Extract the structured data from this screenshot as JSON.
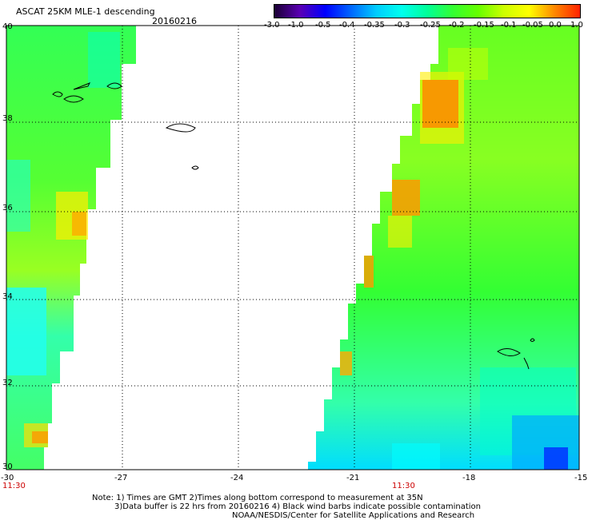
{
  "title": "ASCAT 25KM MLE-1 descending",
  "date": "20160216",
  "colorbar": {
    "labels": [
      "-3.0",
      "-1.0",
      "-0.5",
      "-0.4",
      "-0.35",
      "-0.3",
      "-0.25",
      "-0.2",
      "-0.15",
      "-0.1",
      "-0.05",
      "0.0",
      "1.0"
    ],
    "colors": [
      "#1a0033",
      "#5a00b4",
      "#0000ff",
      "#0066ff",
      "#00ccff",
      "#00ffee",
      "#00ff99",
      "#33ff33",
      "#66ff00",
      "#ccff00",
      "#ffff00",
      "#ff8800",
      "#ff2200"
    ]
  },
  "axes": {
    "lon_labels": [
      "-30",
      "-27",
      "-24",
      "-21",
      "-18",
      "-15"
    ],
    "lat_labels": [
      "40",
      "38",
      "36",
      "34",
      "32",
      "30"
    ],
    "lon_range": [
      -30,
      -15
    ],
    "lat_range": [
      30,
      40
    ]
  },
  "time_labels": [
    "11:30",
    "11:30"
  ],
  "notes": [
    "Note: 1) Times are GMT 2)Times along bottom correspond to measurement at 35N",
    "3)Data buffer is 22 hrs from 20160216 4) Black wind barbs indicate possible contamination",
    "NOAA/NESDIS/Center for Satellite Applications and Research"
  ]
}
